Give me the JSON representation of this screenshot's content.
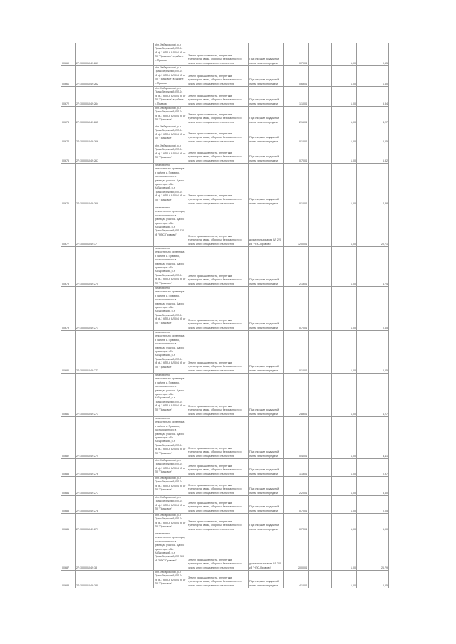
{
  "table": {
    "rows": [
      {
        "id": "00660",
        "cad": "27:10:0001049:261",
        "addr": "обл. Хабаровский, р-н Правобережный, ВЛ-04 кВ ф-1 КТП-6 ВЛ 0,4 кВ от ТП \"Правовое\" в районе с. Правово",
        "land": "Земли промышленности, энергетики, транспорта, связи, обороны, безопасности и земли иного специального назначения",
        "use": "Под опорами воздушной линии электропередачи",
        "area": "0,7004",
        "k": "1,00",
        "val": "0,65"
      },
      {
        "id": "00661",
        "cad": "27:10:0001049:262",
        "addr": "обл. Хабаровский, р-н Правобережный, ВЛ-04 кВ ф-1 КТП-6 ВЛ 0,4 кВ от ТП \"Правовое\" в районе с. Правово",
        "land": "Земли промышленности, энергетики, транспорта, связи, обороны, безопасности и земли иного специального назначения",
        "use": "Под опорами воздушной линии электропередачи",
        "area": "0,6604",
        "k": "1,00",
        "val": "1,60"
      },
      {
        "id": "00672",
        "cad": "27:10:0001049:264",
        "addr": "обл. Хабаровский, р-н Правобережный, ВЛ-04 кВ ф-1 КТП-6 ВЛ 0,4 кВ от ТП \"Правовое\" в районе с. Правово",
        "land": "Земли промышленности, энергетики, транспорта, связи, обороны, безопасности и земли иного специального назначения",
        "use": "Под опорами воздушной линии электропередачи",
        "area": "1,1004",
        "k": "1,00",
        "val": "5,84"
      },
      {
        "id": "00673",
        "cad": "27:10:0001049:265",
        "addr": "обл. Хабаровский, р-н Правобережный, ВЛ-04 кВ ф-1 КТП-6 ВЛ 0,4 кВ от ТП \"Правовое\"",
        "land": "Земли промышленности, энергетики, транспорта, связи, обороны, безопасности и земли иного специального назначения",
        "use": "Под опорами воздушной линии электропередачи",
        "area": "2,1604",
        "k": "1,00",
        "val": "4,27"
      },
      {
        "id": "00674",
        "cad": "27:10:0001049:266",
        "addr": "обл. Хабаровский, р-н Правобережный, ВЛ-04 кВ ф-1 КТП-6 ВЛ 0,4 кВ от ТП \"Правовое\"",
        "land": "Земли промышленности, энергетики, транспорта, связи, обороны, безопасности и земли иного специального назначения",
        "use": "Под опорами воздушной линии электропередачи",
        "area": "0,1004",
        "k": "1,00",
        "val": "0,05"
      },
      {
        "id": "00675",
        "cad": "27:10:0001049:267",
        "addr": "обл. Хабаровский, р-н Правобережный, ВЛ-04 кВ ф-1 КТП-6 ВЛ 0,4 кВ от ТП \"Правовое\"",
        "land": "Земли промышленности, энергетики, транспорта, связи, обороны, безопасности и земли иного специального назначения",
        "use": "Под опорами воздушной линии электропередачи",
        "area": "0,7004",
        "k": "1,00",
        "val": "6,82"
      },
      {
        "id": "00676",
        "cad": "27:10:0001049:268",
        "addr": "установлено относительно ориентира в районе с. Правово, расположенного в границах участка. Адрес ориентира: обл. Хабаровский, р-н Правобережный, ВЛ-04 кВ ф-1 КТП-6 ВЛ 0,4 кВ от ТП \"Правовое\"",
        "land": "Земли промышленности, энергетики, транспорта, связи, обороны, безопасности и земли иного специального назначения",
        "use": "Под опорами воздушной линии электропередачи",
        "area": "0,1004",
        "k": "1,00",
        "val": "4,38"
      },
      {
        "id": "00677",
        "cad": "27:10:0001049:37",
        "addr": "установлено относительно ориентира, расположенного в границах участка. Адрес ориентира: обл. Хабаровский, р-н Правобережный, ВЛ 220 кВ \"НПС-Правово\"",
        "land": "Земли промышленности, энергетики, транспорта, связи, обороны, безопасности и земли иного специального назначения",
        "use": "для использования ВЛ 220 кВ \"НПС-Правово\"",
        "area": "32,0004",
        "k": "1,00",
        "val": "20,71"
      },
      {
        "id": "00678",
        "cad": "27:10:0001049:270",
        "addr": "установлено относительно ориентира в районе с. Правово, расположенного в границах участка. Адрес ориентира: обл. Хабаровский, р-н Правобережный, ВЛ-04 кВ ф-1 КТП-6 ВЛ 0,4 кВ от ТП \"Правовое\"",
        "land": "Земли промышленности, энергетики, транспорта, связи, обороны, безопасности и земли иного специального назначения",
        "use": "Под опорами воздушной линии электропередачи",
        "area": "2,1604",
        "k": "1,00",
        "val": "4,74"
      },
      {
        "id": "00679",
        "cad": "27:10:0001049:271",
        "addr": "установлено относительно ориентира в районе с. Правово, расположенного в границах участка. Адрес ориентира: обл. Хабаровский, р-н Правобережный, ВЛ-04 кВ ф-1 КТП-6 ВЛ 0,4 кВ от ТП \"Правовое\"",
        "land": "Земли промышленности, энергетики, транспорта, связи, обороны, безопасности и земли иного специального назначения",
        "use": "Под опорами воздушной линии электропередачи",
        "area": "0,7004",
        "k": "1,00",
        "val": "0,65"
      },
      {
        "id": "00680",
        "cad": "27:10:0001049:272",
        "addr": "установлено относительно ориентира в районе с. Правово, расположенного в границах участка. Адрес ориентира: обл. Хабаровский, р-н Правобережный, ВЛ-04 кВ ф-1 КТП-6 ВЛ 0,4 кВ от ТП \"Правовое\"",
        "land": "Земли промышленности, энергетики, транспорта, связи, обороны, безопасности и земли иного специального назначения",
        "use": "Под опорами воздушной линии электропередачи",
        "area": "0,1004",
        "k": "1,00",
        "val": "0,05"
      },
      {
        "id": "00681",
        "cad": "27:10:0001049:273",
        "addr": "установлено относительно ориентира в районе с. Правово, расположенного в границах участка. Адрес ориентира: обл. Хабаровский, р-н Правобережный, ВЛ-04 кВ ф-1 КТП-6 ВЛ 0,4 кВ от ТП \"Правовое\"",
        "land": "Земли промышленности, энергетики, транспорта, связи, обороны, безопасности и земли иного специального назначения",
        "use": "Под опорами воздушной линии электропередачи",
        "area": "2,8604",
        "k": "1,00",
        "val": "4,27"
      },
      {
        "id": "00682",
        "cad": "27:10:0001049:274",
        "addr": "установлено относительно ориентира в районе с. Правово, расположенного в границах участка. Адрес ориентира: обл. Хабаровский, р-н Правобережный, ВЛ-04 кВ ф-1 КТП-6 ВЛ 0,4 кВ от ТП \"Правовое\"",
        "land": "Земли промышленности, энергетики, транспорта, связи, обороны, безопасности и земли иного специального назначения",
        "use": "Под опорами воздушной линии электропередачи",
        "area": "0,4004",
        "k": "1,00",
        "val": "4,11"
      },
      {
        "id": "00683",
        "cad": "27:10:0001049:276",
        "addr": "обл. Хабаровский, р-н Правобережный, ВЛ-04 кВ ф-1 КТП-6 ВЛ 0,4 кВ от ТП \"Правовое\"",
        "land": "Земли промышленности, энергетики, транспорта, связи, обороны, безопасности и земли иного специального назначения",
        "use": "Под опорами воздушной линии электропередачи",
        "area": "1,1604",
        "k": "1,00",
        "val": "0,97"
      },
      {
        "id": "00684",
        "cad": "27:10:0001049:277",
        "addr": "обл. Хабаровский, р-н Правобережный, ВЛ-04 кВ ф-1 КТП-6 ВЛ 0,4 кВ от ТП \"Правовое\"",
        "land": "Земли промышленности, энергетики, транспорта, связи, обороны, безопасности и земли иного специального назначения",
        "use": "Под опорами воздушной линии электропередачи",
        "area": "2,2004",
        "k": "1,00",
        "val": "3,60"
      },
      {
        "id": "00685",
        "cad": "27:10:0001049:278",
        "addr": "обл. Хабаровский, р-н Правобережный, ВЛ-04 кВ ф-1 КТП-6 ВЛ 0,4 кВ от ТП \"Правовое\"",
        "land": "Земли промышленности, энергетики, транспорта, связи, обороны, безопасности и земли иного специального назначения",
        "use": "Под опорами воздушной линии электропередачи",
        "area": "0,7004",
        "k": "1,00",
        "val": "0,05"
      },
      {
        "id": "00686",
        "cad": "27:10:0001049:279",
        "addr": "обл. Хабаровский, р-н Правобережный, ВЛ-04 кВ ф-1 КТП-6 ВЛ 0,4 кВ от ТП \"Правовое\"",
        "land": "Земли промышленности, энергетики, транспорта, связи, обороны, безопасности и земли иного специального назначения",
        "use": "Под опорами воздушной линии электропередачи",
        "area": "0,7504",
        "k": "1,00",
        "val": "5,00"
      },
      {
        "id": "00687",
        "cad": "27:10:0001049:38",
        "addr": "установлено относительно ориентира, расположенного в границах участка. Адрес ориентира: обл. Хабаровский, р-н Правобережный, ВЛ 220 кВ \"НПС-Правово\"",
        "land": "Земли промышленности, энергетики, транспорта, связи, обороны, безопасности и земли иного специального назначения",
        "use": "для использования ВЛ 220 кВ \"НПС-Правово\"",
        "area": "20,0004",
        "k": "1,00",
        "val": "26,79"
      },
      {
        "id": "00688",
        "cad": "27:10:0001049:280",
        "addr": "обл. Хабаровский, р-н Правобережный, ВЛ-04 кВ ф-1 КТП-6 ВЛ 0,4 кВ от ТП \"Правовое\"",
        "land": "Земли промышленности, энергетики, транспорта, связи, обороны, безопасности и земли иного специального назначения",
        "use": "Под опорами воздушной линии электропередачи",
        "area": "4,1004",
        "k": "1,00",
        "val": "0,65"
      }
    ]
  }
}
